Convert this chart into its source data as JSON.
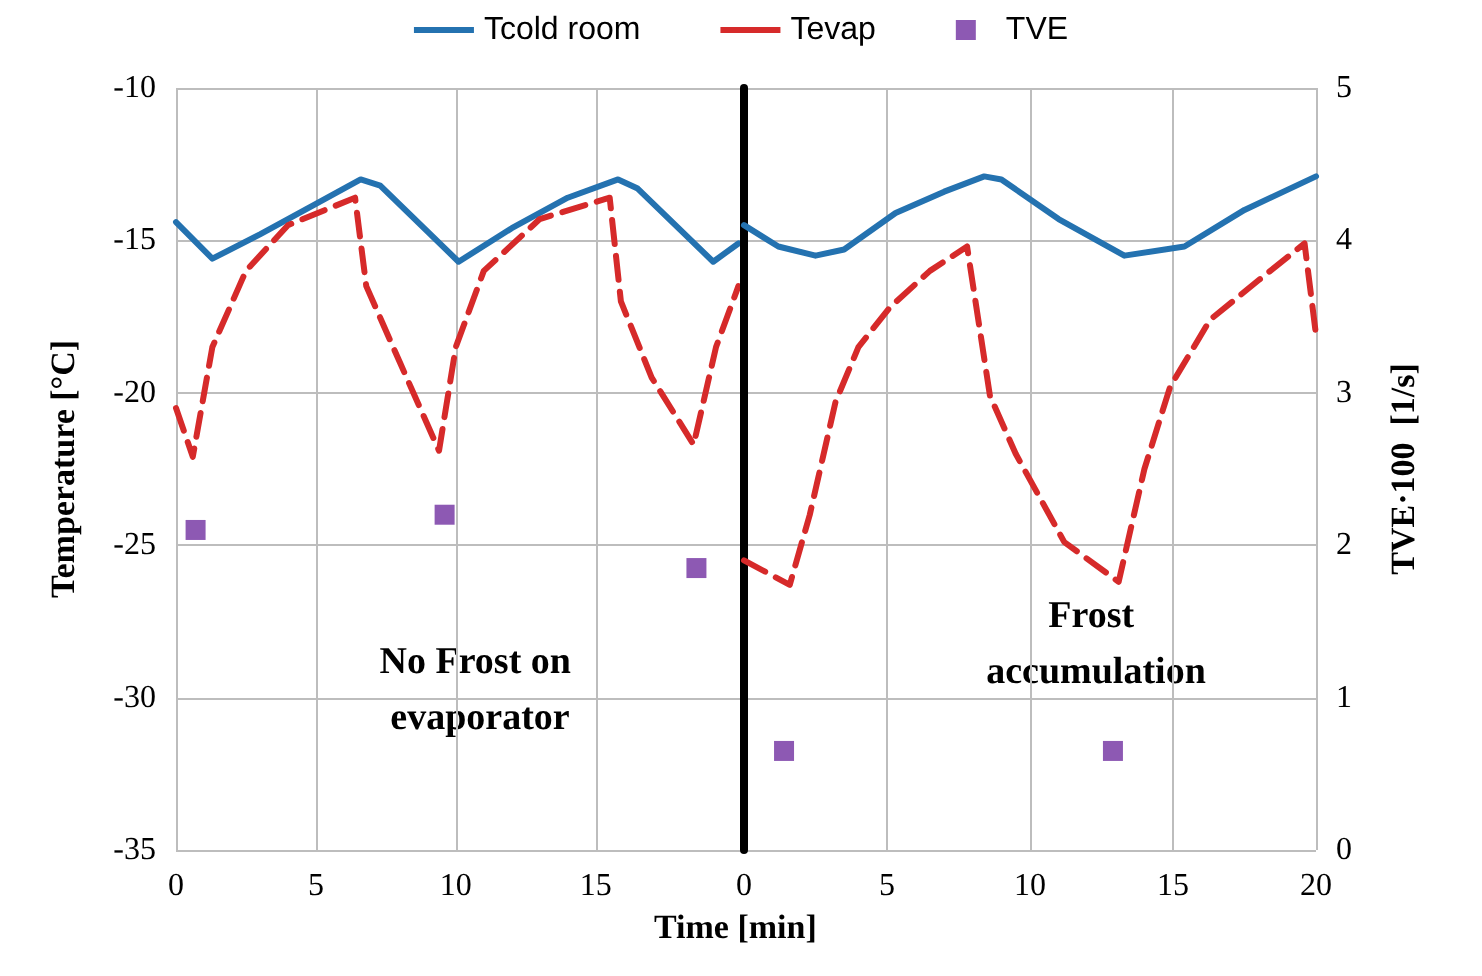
{
  "chart_data": [
    {
      "type": "line",
      "xlabel": "Time [min]",
      "ylabel": "Temperature [°C]",
      "annotations": [
        "No Frost on evaporator"
      ],
      "xlim": [
        0,
        20.3
      ],
      "xticks": [
        0,
        5,
        10,
        15
      ],
      "ylim": [
        -35,
        -10
      ],
      "yticks": [
        -35,
        -30,
        -25,
        -20,
        -15,
        -10
      ],
      "y2lim": [
        0,
        5
      ],
      "grid": true,
      "legend": "top",
      "tick_labels": "xy",
      "series": [
        {
          "name": "Tcold room",
          "color": "#2472b0",
          "line_style": "solid",
          "marker": "none",
          "x": [
            0,
            1.3,
            3,
            5,
            6.6,
            7.3,
            10.1,
            12,
            14,
            15.8,
            16.5,
            19.2,
            20.1
          ],
          "values": [
            -14.4,
            -15.6,
            -14.8,
            -13.8,
            -13.0,
            -13.2,
            -15.7,
            -14.6,
            -13.6,
            -13.0,
            -13.3,
            -15.7,
            -15.1
          ]
        },
        {
          "name": "Tevap",
          "color": "#d62a2a",
          "line_style": "dashed",
          "marker": "none",
          "x": [
            0,
            0.6,
            1.3,
            2.5,
            4,
            6.4,
            6.8,
            8,
            9.4,
            10,
            11,
            13,
            15.5,
            15.9,
            17,
            18.5,
            19.3,
            20.1
          ],
          "values": [
            -20.5,
            -22.1,
            -18.5,
            -16.0,
            -14.5,
            -13.6,
            -16.5,
            -19.0,
            -21.9,
            -18.5,
            -16.0,
            -14.3,
            -13.6,
            -17.0,
            -19.5,
            -21.7,
            -18.5,
            -16.5
          ]
        },
        {
          "name": "TVE",
          "type": "scatter",
          "axis": "y2",
          "color": "#7030a0",
          "marker": "square",
          "x": [
            0.7,
            9.6,
            18.6
          ],
          "values": [
            2.1,
            2.2,
            1.85
          ]
        }
      ]
    },
    {
      "type": "line",
      "y2label": "TVE·100  [1/s]",
      "annotations": [
        "Frost accumulation"
      ],
      "xlim": [
        0,
        20
      ],
      "xticks": [
        0,
        5,
        10,
        15,
        20
      ],
      "ylim": [
        -35,
        -10
      ],
      "y2lim": [
        0,
        5
      ],
      "y2ticks": [
        0,
        1,
        2,
        3,
        4,
        5
      ],
      "grid": true,
      "tick_labels": "xy2",
      "series": [
        {
          "color": "#2472b0",
          "line_style": "solid",
          "marker": "none",
          "x": [
            0,
            1.2,
            2.5,
            3.5,
            5.3,
            7,
            8.4,
            9,
            11,
            13.3,
            15.4,
            17.5,
            20
          ],
          "values": [
            -14.5,
            -15.2,
            -15.5,
            -15.3,
            -14.1,
            -13.4,
            -12.9,
            -13.0,
            -14.3,
            -15.5,
            -15.2,
            -14.0,
            -12.9
          ]
        },
        {
          "color": "#d62a2a",
          "line_style": "dashed",
          "marker": "none",
          "x": [
            0,
            0.8,
            1.6,
            2.3,
            3.2,
            4,
            5.1,
            6.5,
            7.8,
            8.6,
            9.5,
            11.2,
            13.1,
            14,
            14.9,
            16.3,
            18,
            19.6,
            20
          ],
          "values": [
            -25.5,
            -25.9,
            -26.3,
            -24.0,
            -20.3,
            -18.5,
            -17.2,
            -16.0,
            -15.2,
            -20.1,
            -22.0,
            -24.9,
            -26.2,
            -22.5,
            -19.8,
            -17.6,
            -16.3,
            -15.1,
            -18.1
          ]
        },
        {
          "type": "scatter",
          "axis": "y2",
          "color": "#7030a0",
          "marker": "square",
          "x": [
            1.4,
            12.9
          ],
          "values": [
            0.65,
            0.65
          ]
        }
      ]
    }
  ]
}
